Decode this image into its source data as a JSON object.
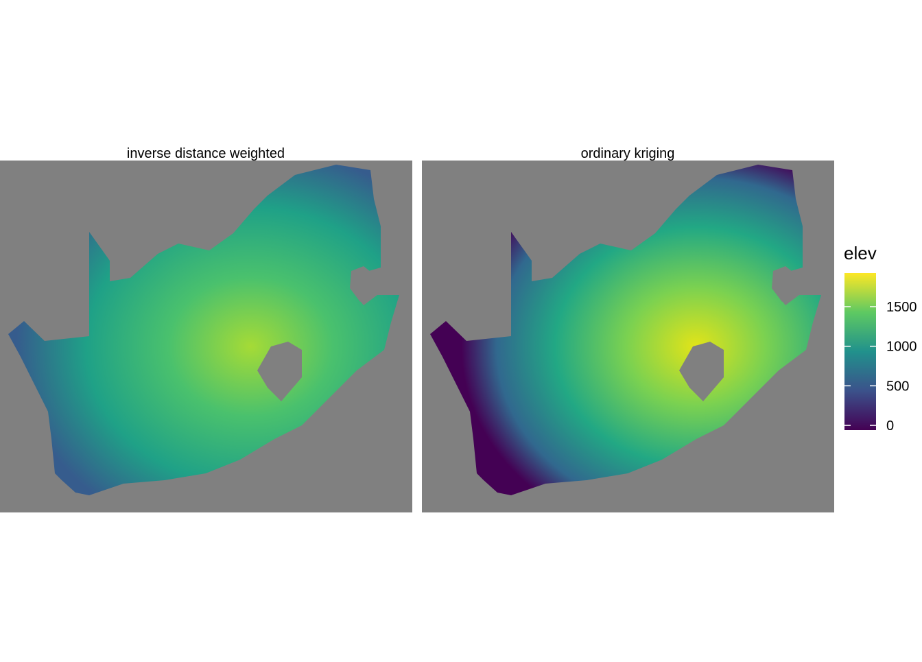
{
  "panels": [
    {
      "title": "inverse distance weighted"
    },
    {
      "title": "ordinary kriging"
    }
  ],
  "legend": {
    "title": "elev",
    "lim": [
      -60,
      1925
    ],
    "ticks": [
      0,
      500,
      1000,
      1500
    ]
  }
}
